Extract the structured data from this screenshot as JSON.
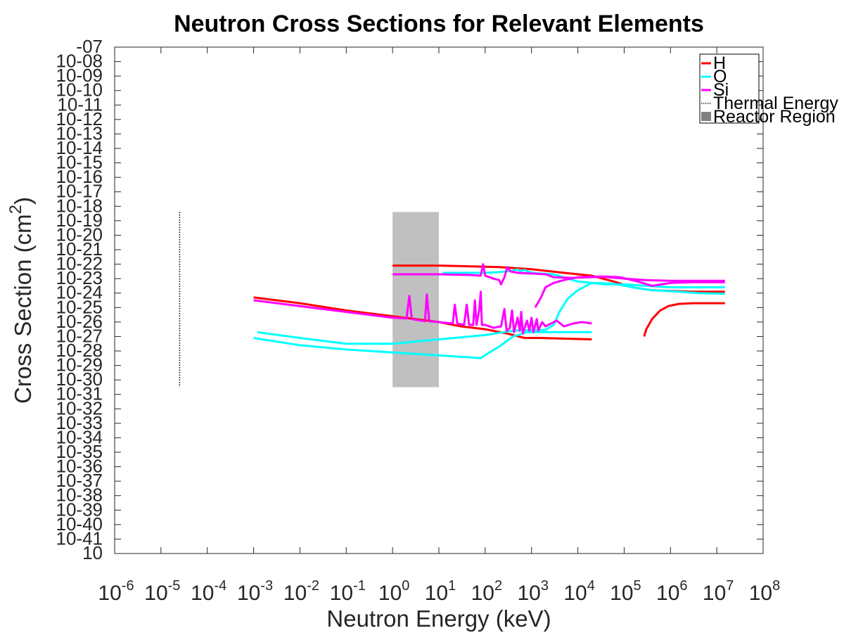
{
  "chart_data": {
    "type": "line",
    "title": "Neutron Cross Sections for Relevant Elements",
    "xlabel": "Neutron Energy (keV)",
    "ylabel": "Cross Section (cm2)",
    "x_scale": "log",
    "x_tick_exponents": [
      -6,
      -5,
      -4,
      -3,
      -2,
      -1,
      0,
      1,
      2,
      3,
      4,
      5,
      6,
      7,
      8
    ],
    "xlim": [
      1e-06,
      100000000.0
    ],
    "y_tick_labels": [
      "-07",
      "10-08",
      "10-09",
      "10-10",
      "10-11",
      "10-12",
      "10-13",
      "10-14",
      "10-15",
      "10-16",
      "10-17",
      "10-18",
      "10-19",
      "10-20",
      "10-21",
      "10-22",
      "10-23",
      "10-24",
      "10-25",
      "10-26",
      "10-27",
      "10-28",
      "10-29",
      "10-30",
      "10-31",
      "10-32",
      "10-33",
      "10-34",
      "10-35",
      "10-36",
      "10-37",
      "10-38",
      "10-39",
      "10-40",
      "10-41",
      "10"
    ],
    "grid": false,
    "legend_position": "top-right",
    "legend": [
      "H",
      "O",
      "Si",
      "Thermal Energy",
      "Reactor Region"
    ],
    "series": [
      {
        "name": "H",
        "color": "#ff0000",
        "segments": [
          [
            [
              0.001,
              -24.3
            ],
            [
              0.01,
              -24.7
            ],
            [
              0.1,
              -25.2
            ],
            [
              1,
              -25.6
            ],
            [
              10,
              -26.0
            ],
            [
              30,
              -26.3
            ],
            [
              100,
              -26.5
            ],
            [
              300,
              -26.8
            ],
            [
              700,
              -27.1
            ],
            [
              1500,
              -27.1
            ],
            [
              20000,
              -27.2
            ]
          ],
          [
            [
              1,
              -22.1
            ],
            [
              10,
              -22.1
            ],
            [
              50,
              -22.15
            ],
            [
              200,
              -22.2
            ],
            [
              1000,
              -22.35
            ],
            [
              5000,
              -22.6
            ],
            [
              20000,
              -22.8
            ],
            [
              60000,
              -23.2
            ],
            [
              150000,
              -23.6
            ],
            [
              400000,
              -23.8
            ],
            [
              1000000,
              -23.85
            ],
            [
              3000000,
              -23.9
            ],
            [
              15000000,
              -23.9
            ]
          ],
          [
            [
              270000,
              -27.0
            ],
            [
              300000,
              -26.5
            ],
            [
              400000,
              -25.8
            ],
            [
              600000,
              -25.2
            ],
            [
              900000,
              -24.9
            ],
            [
              1500000,
              -24.75
            ],
            [
              3000000,
              -24.7
            ],
            [
              15000000,
              -24.7
            ]
          ]
        ]
      },
      {
        "name": "O",
        "color": "#00ffff",
        "segments": [
          [
            [
              0.001,
              -27.1
            ],
            [
              0.01,
              -27.6
            ],
            [
              0.1,
              -27.9
            ],
            [
              1,
              -28.1
            ],
            [
              10,
              -28.3
            ],
            [
              50,
              -28.45
            ],
            [
              80,
              -28.5
            ],
            [
              110,
              -28.2
            ],
            [
              200,
              -27.7
            ],
            [
              400,
              -27.0
            ],
            [
              800,
              -26.7
            ],
            [
              20000,
              -26.7
            ]
          ],
          [
            [
              0.0012,
              -26.7
            ],
            [
              0.01,
              -27.1
            ],
            [
              0.1,
              -27.5
            ],
            [
              1,
              -27.5
            ],
            [
              10,
              -27.2
            ],
            [
              100,
              -26.9
            ],
            [
              400,
              -26.6
            ],
            [
              1000,
              -26.55
            ],
            [
              2000,
              -26.55
            ],
            [
              3000,
              -26.2
            ],
            [
              4000,
              -25.3
            ],
            [
              6000,
              -24.4
            ],
            [
              10000,
              -23.8
            ],
            [
              20000,
              -23.3
            ],
            [
              60000,
              -23.35
            ],
            [
              150000,
              -23.6
            ],
            [
              400000,
              -23.8
            ],
            [
              1500000,
              -23.9
            ],
            [
              4000000,
              -24.0
            ],
            [
              15000000,
              -24.05
            ]
          ],
          [
            [
              12,
              -22.6
            ],
            [
              100,
              -22.6
            ],
            [
              200,
              -22.55
            ],
            [
              400,
              -22.45
            ],
            [
              500,
              -22.35
            ],
            [
              550,
              -22.5
            ],
            [
              700,
              -22.4
            ],
            [
              1000,
              -22.6
            ],
            [
              3000,
              -22.7
            ],
            [
              10000,
              -23.2
            ],
            [
              40000,
              -23.4
            ],
            [
              100000,
              -23.4
            ],
            [
              300000,
              -23.5
            ],
            [
              1000000,
              -23.6
            ],
            [
              4000000,
              -23.6
            ],
            [
              15000000,
              -23.6
            ]
          ]
        ]
      },
      {
        "name": "Si",
        "color": "#ff00ff",
        "segments": [
          [
            [
              0.001,
              -24.5
            ],
            [
              0.01,
              -24.9
            ],
            [
              0.1,
              -25.3
            ],
            [
              1,
              -25.7
            ],
            [
              2,
              -25.75
            ],
            [
              2.3,
              -24.2
            ],
            [
              2.6,
              -25.8
            ],
            [
              5,
              -25.95
            ],
            [
              5.5,
              -24.1
            ],
            [
              6.2,
              -25.95
            ],
            [
              20,
              -26.1
            ],
            [
              22,
              -24.8
            ],
            [
              25,
              -26.1
            ],
            [
              35,
              -26.2
            ],
            [
              40,
              -24.8
            ],
            [
              45,
              -26.2
            ],
            [
              55,
              -26.2
            ],
            [
              60,
              -24.5
            ],
            [
              65,
              -26.2
            ],
            [
              75,
              -25.1
            ],
            [
              80,
              -23.9
            ],
            [
              85,
              -26.2
            ],
            [
              100,
              -26.2
            ],
            [
              150,
              -26.4
            ],
            [
              220,
              -26.3
            ],
            [
              260,
              -25.1
            ],
            [
              290,
              -26.6
            ],
            [
              340,
              -26.4
            ],
            [
              380,
              -25.2
            ],
            [
              420,
              -26.7
            ],
            [
              500,
              -25.7
            ],
            [
              560,
              -26.6
            ],
            [
              600,
              -25.3
            ],
            [
              650,
              -26.8
            ],
            [
              800,
              -25.9
            ],
            [
              900,
              -26.6
            ],
            [
              1000,
              -25.7
            ],
            [
              1100,
              -26.7
            ],
            [
              1300,
              -25.8
            ],
            [
              1400,
              -26.6
            ],
            [
              1700,
              -26.0
            ],
            [
              2000,
              -26.3
            ],
            [
              3500,
              -25.9
            ],
            [
              5000,
              -26.3
            ],
            [
              8000,
              -26.1
            ],
            [
              12000,
              -26.0
            ],
            [
              20000,
              -26.1
            ]
          ],
          [
            [
              1,
              -22.7
            ],
            [
              10,
              -22.7
            ],
            [
              50,
              -22.75
            ],
            [
              80,
              -22.8
            ],
            [
              90,
              -22.0
            ],
            [
              100,
              -22.8
            ],
            [
              150,
              -23.0
            ],
            [
              200,
              -23.1
            ],
            [
              220,
              -23.4
            ],
            [
              260,
              -22.9
            ],
            [
              300,
              -22.2
            ],
            [
              350,
              -22.5
            ],
            [
              500,
              -22.6
            ],
            [
              1000,
              -22.65
            ],
            [
              2000,
              -22.7
            ],
            [
              3000,
              -22.9
            ],
            [
              7000,
              -22.95
            ],
            [
              20000,
              -22.9
            ],
            [
              40000,
              -22.85
            ],
            [
              80000,
              -22.9
            ],
            [
              200000,
              -23.2
            ],
            [
              400000,
              -23.5
            ],
            [
              1000000,
              -23.3
            ],
            [
              3000000,
              -23.25
            ],
            [
              15000000,
              -23.25
            ]
          ],
          [
            [
              1200,
              -25.0
            ],
            [
              1600,
              -24.3
            ],
            [
              2000,
              -23.6
            ],
            [
              3000,
              -23.3
            ],
            [
              5000,
              -23.1
            ],
            [
              10000,
              -22.9
            ],
            [
              30000,
              -22.85
            ],
            [
              100000,
              -23.0
            ],
            [
              300000,
              -23.1
            ],
            [
              1000000,
              -23.15
            ],
            [
              15000000,
              -23.15
            ]
          ]
        ]
      }
    ],
    "thermal_line": {
      "name": "Thermal Energy",
      "x": 2.53e-05,
      "y_range": [
        -30.5,
        -18.4
      ],
      "style": "dotted"
    },
    "reactor_region": {
      "name": "Reactor Region",
      "x_range": [
        1,
        10
      ],
      "y_range": [
        -30.5,
        -18.4
      ],
      "color": "#c0c0c0"
    }
  }
}
